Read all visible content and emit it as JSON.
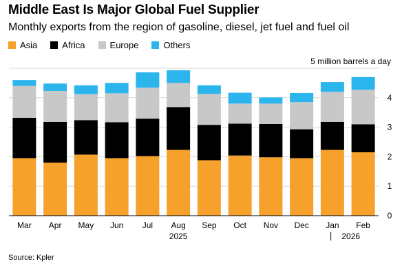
{
  "title": "Middle East Is Major Global Fuel Supplier",
  "subtitle": "Monthly exports from the region of gasoline, diesel, jet fuel and fuel oil",
  "unit_label": "5 million barrels a day",
  "source": "Source: Kpler",
  "colors": {
    "Asia": "#f5a12c",
    "Africa": "#000000",
    "Europe": "#c8c8c8",
    "Others": "#2bb5ec",
    "grid": "#d9d9d9"
  },
  "chart_data": {
    "type": "bar",
    "stacked": true,
    "categories": [
      "Mar",
      "Apr",
      "May",
      "Jun",
      "Jul",
      "Aug",
      "Sep",
      "Oct",
      "Nov",
      "Dec",
      "Jan",
      "Feb"
    ],
    "year_labels": [
      "2025",
      "2026"
    ],
    "series": [
      {
        "name": "Asia",
        "values": [
          1.95,
          1.8,
          2.07,
          1.95,
          2.02,
          2.23,
          1.88,
          2.04,
          1.98,
          1.95,
          2.23,
          2.15
        ]
      },
      {
        "name": "Africa",
        "values": [
          1.37,
          1.38,
          1.17,
          1.22,
          1.27,
          1.45,
          1.2,
          1.08,
          1.13,
          0.98,
          0.95,
          0.95
        ]
      },
      {
        "name": "Europe",
        "values": [
          1.08,
          1.05,
          0.88,
          0.98,
          1.05,
          0.82,
          1.05,
          0.68,
          0.69,
          0.92,
          1.02,
          1.17
        ]
      },
      {
        "name": "Others",
        "values": [
          0.2,
          0.25,
          0.3,
          0.35,
          0.52,
          0.43,
          0.29,
          0.37,
          0.21,
          0.31,
          0.33,
          0.43
        ]
      }
    ],
    "ylim": [
      0,
      5
    ],
    "yticks": [
      0,
      1,
      2,
      3,
      4
    ],
    "grid": true,
    "legend_position": "top-left"
  }
}
